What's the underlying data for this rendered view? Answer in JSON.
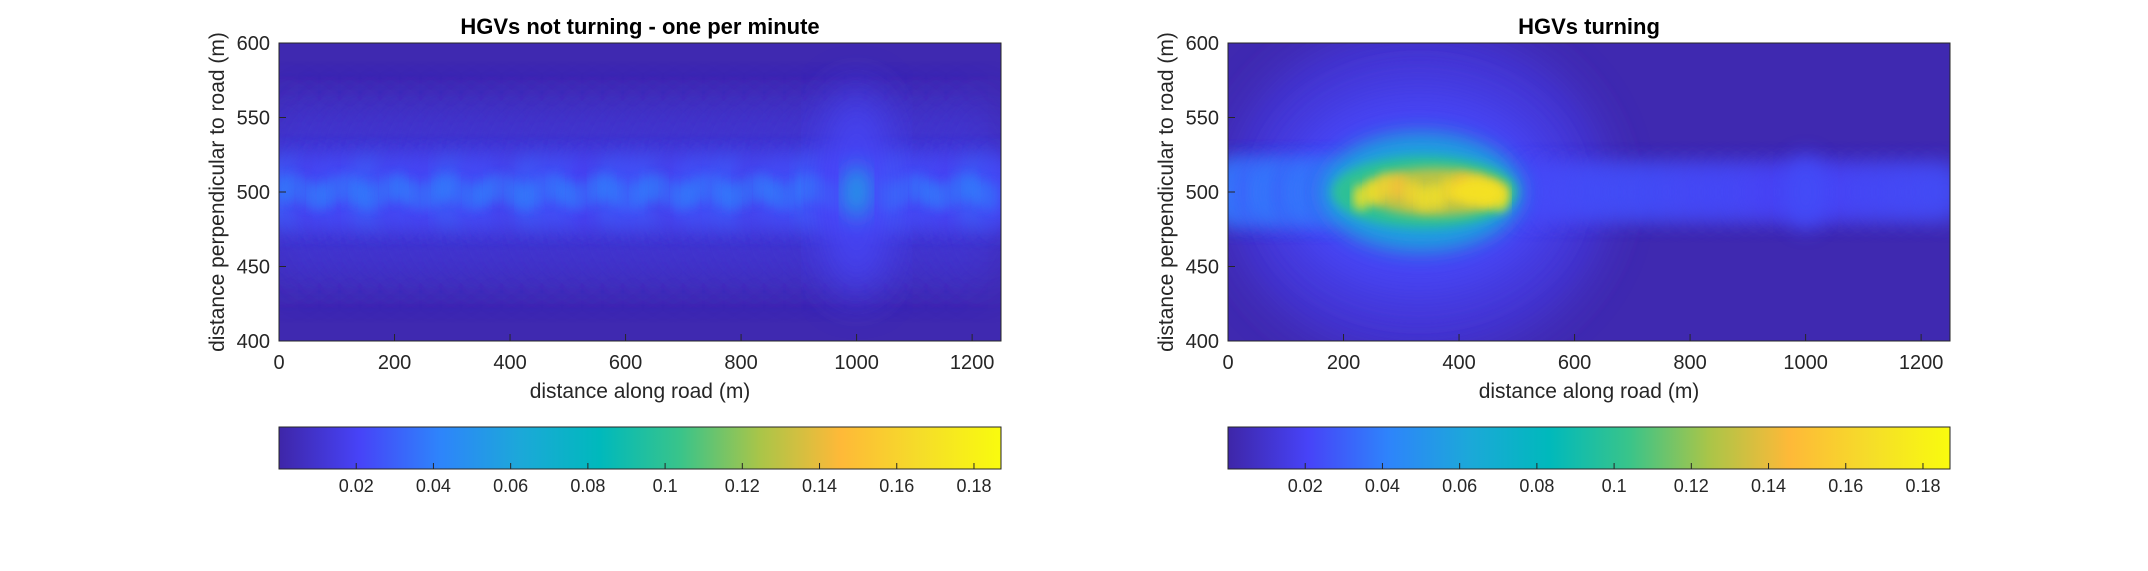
{
  "chart_data": [
    {
      "type": "heatmap",
      "title": "HGVs not turning - one per minute",
      "xlabel": "distance along road (m)",
      "ylabel": "distance perpendicular to road (m)",
      "xlim": [
        0,
        1250
      ],
      "ylim": [
        400,
        600
      ],
      "xticks": [
        0,
        200,
        400,
        600,
        800,
        1000,
        1200
      ],
      "yticks": [
        400,
        450,
        500,
        550,
        600
      ],
      "colorbar": {
        "location": "bottom",
        "range": [
          0,
          0.187
        ],
        "ticks": [
          0.02,
          0.04,
          0.06,
          0.08,
          0.1,
          0.12,
          0.14,
          0.16,
          0.18
        ]
      },
      "features": [
        {
          "x_range": [
            0,
            1250
          ],
          "y_center": 500,
          "peak": 0.045,
          "description": "continuous band along road centreline"
        },
        {
          "x_center": 1000,
          "y_center": 500,
          "peak": 0.055
        }
      ]
    },
    {
      "type": "heatmap",
      "title": "HGVs turning",
      "xlabel": "distance along road (m)",
      "ylabel": "distance perpendicular to road (m)",
      "xlim": [
        0,
        1250
      ],
      "ylim": [
        400,
        600
      ],
      "xticks": [
        0,
        200,
        400,
        600,
        800,
        1000,
        1200
      ],
      "yticks": [
        400,
        450,
        500,
        550,
        600
      ],
      "colorbar": {
        "location": "bottom",
        "range": [
          0,
          0.187
        ],
        "ticks": [
          0.02,
          0.04,
          0.06,
          0.08,
          0.1,
          0.12,
          0.14,
          0.16,
          0.18
        ]
      },
      "features": [
        {
          "x_range": [
            170,
            500
          ],
          "y_center": 500,
          "peak": 0.17
        },
        {
          "x_range": [
            500,
            1250
          ],
          "y_center": 500,
          "peak": 0.02
        }
      ]
    }
  ],
  "colormap": [
    "#3e26a8",
    "#4743f8",
    "#2e84fb",
    "#1ca8d9",
    "#00b9bc",
    "#39c48a",
    "#aac548",
    "#feb938",
    "#f5dd29",
    "#f9fb0e"
  ]
}
